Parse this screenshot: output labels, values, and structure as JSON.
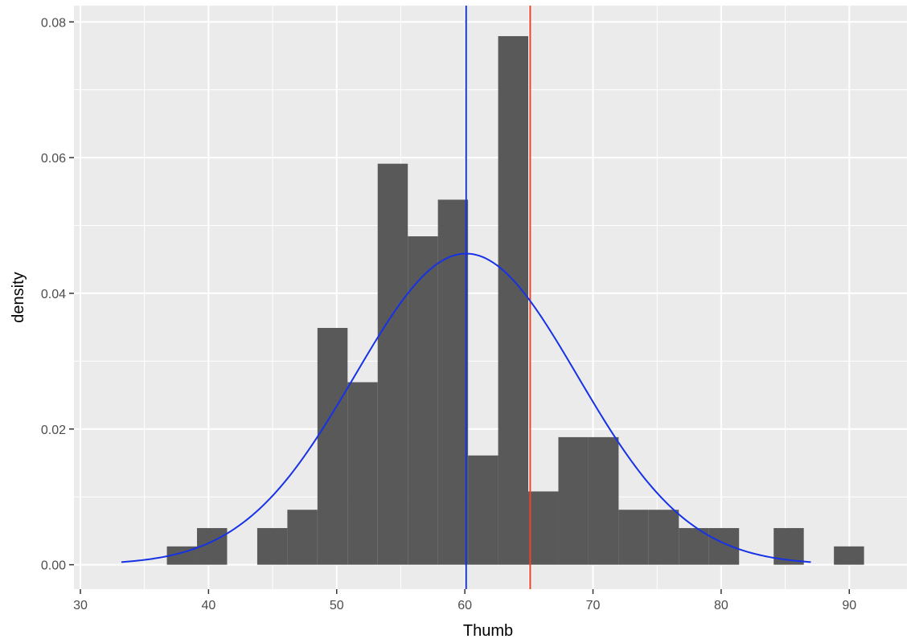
{
  "chart_data": {
    "type": "bar",
    "xlabel": "Thumb",
    "ylabel": "density",
    "xlim": [
      29.5,
      94.5
    ],
    "ylim": [
      -0.0036,
      0.0824
    ],
    "x_ticks": [
      30,
      40,
      50,
      60,
      70,
      80,
      90
    ],
    "x_tick_labels": [
      "30",
      "40",
      "50",
      "60",
      "70",
      "80",
      "90"
    ],
    "y_ticks": [
      0.0,
      0.02,
      0.04,
      0.06,
      0.08
    ],
    "y_tick_labels": [
      "0.00",
      "0.02",
      "0.04",
      "0.06",
      "0.08"
    ],
    "grid": true,
    "bin_width": 2.35,
    "bins": [
      {
        "start": 36.75,
        "density": 0.0027
      },
      {
        "start": 39.1,
        "density": 0.0054
      },
      {
        "start": 43.8,
        "density": 0.0054
      },
      {
        "start": 46.15,
        "density": 0.0081
      },
      {
        "start": 48.5,
        "density": 0.0349
      },
      {
        "start": 50.85,
        "density": 0.0269
      },
      {
        "start": 53.2,
        "density": 0.0591
      },
      {
        "start": 55.55,
        "density": 0.0484
      },
      {
        "start": 57.9,
        "density": 0.0538
      },
      {
        "start": 60.25,
        "density": 0.0161
      },
      {
        "start": 62.6,
        "density": 0.0779
      },
      {
        "start": 64.95,
        "density": 0.0108
      },
      {
        "start": 67.3,
        "density": 0.0188
      },
      {
        "start": 69.65,
        "density": 0.0188
      },
      {
        "start": 72.0,
        "density": 0.0081
      },
      {
        "start": 74.35,
        "density": 0.0081
      },
      {
        "start": 76.7,
        "density": 0.0054
      },
      {
        "start": 79.05,
        "density": 0.0054
      },
      {
        "start": 84.1,
        "density": 0.0054
      },
      {
        "start": 88.8,
        "density": 0.0027
      }
    ],
    "normal_curve": {
      "mean": 60.1,
      "sd": 8.7,
      "x_range": [
        33.2,
        87.0
      ]
    },
    "vlines": [
      60.1,
      65.1
    ]
  },
  "colors": {
    "panel": "#ebebeb",
    "grid": "#ffffff",
    "bar": "#595959",
    "curve": "#1632e6",
    "mean_line": "#1632e6",
    "ref_line": "#e8442e",
    "tick_text": "#4d4d4d"
  }
}
